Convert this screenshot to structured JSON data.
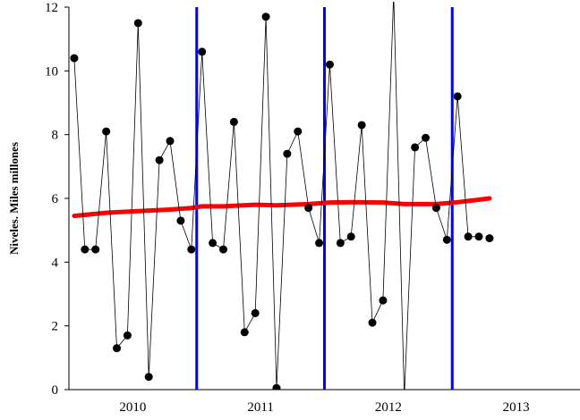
{
  "chart_data": {
    "type": "line",
    "title": "",
    "xlabel": "",
    "ylabel": "Niveles. Miles millones",
    "ylim": [
      0,
      12
    ],
    "yticks": [
      0,
      2,
      4,
      6,
      8,
      10,
      12
    ],
    "xlim": [
      0,
      48
    ],
    "x_tick_labels": [
      "2010",
      "2011",
      "2012",
      "2013"
    ],
    "grid": false,
    "legend": "none",
    "series": [
      {
        "style": "black-line-markers",
        "color": "#000000",
        "x": [
          0.5,
          1.5,
          2.5,
          3.5,
          4.5,
          5.5,
          6.5,
          7.5,
          8.5,
          9.5,
          10.5,
          11.5,
          12.5,
          13.5,
          14.5,
          15.5,
          16.5,
          17.5,
          18.5,
          19.5,
          20.5,
          21.5,
          22.5,
          23.5,
          24.5,
          25.5,
          26.5,
          27.5,
          28.5,
          29.5,
          30.5,
          31.5,
          32.5,
          33.5,
          34.5,
          35.5,
          36.5,
          37.5,
          38.5,
          39.5
        ],
        "values": [
          10.4,
          4.4,
          4.4,
          8.1,
          1.3,
          1.7,
          11.5,
          0.4,
          7.2,
          7.8,
          5.3,
          4.4,
          10.6,
          4.6,
          4.4,
          8.4,
          1.8,
          2.4,
          11.7,
          0.05,
          7.4,
          8.1,
          5.7,
          4.6,
          10.2,
          4.6,
          4.8,
          8.3,
          2.1,
          2.8,
          12.4,
          -0.2,
          7.6,
          7.9,
          5.7,
          4.7,
          9.2,
          4.8,
          4.8,
          null
        ],
        "markers_shown": [
          true,
          true,
          true,
          true,
          true,
          true,
          true,
          true,
          true,
          true,
          true,
          true,
          true,
          true,
          true,
          true,
          true,
          true,
          true,
          true,
          true,
          true,
          true,
          true,
          true,
          true,
          true,
          true,
          true,
          true,
          false,
          false,
          true,
          true,
          true,
          true,
          true,
          true,
          true,
          true
        ],
        "note_last": ""
      },
      {
        "style": "trend",
        "color": "#ff0000",
        "x": [
          0.5,
          3.5,
          6.5,
          9.5,
          11.5,
          12.5,
          14.5,
          17.5,
          19.5,
          22.5,
          24.5,
          26.5,
          29.5,
          31.5,
          34.5,
          36.5,
          39.5
        ],
        "values": [
          5.45,
          5.55,
          5.6,
          5.65,
          5.7,
          5.75,
          5.75,
          5.8,
          5.78,
          5.82,
          5.87,
          5.88,
          5.87,
          5.82,
          5.82,
          5.88,
          6.0
        ]
      }
    ],
    "vertical_lines": {
      "color": "#0000ff",
      "x": [
        12,
        24,
        36
      ]
    },
    "extra_point": {
      "x": 39.5,
      "y": 4.75
    }
  }
}
